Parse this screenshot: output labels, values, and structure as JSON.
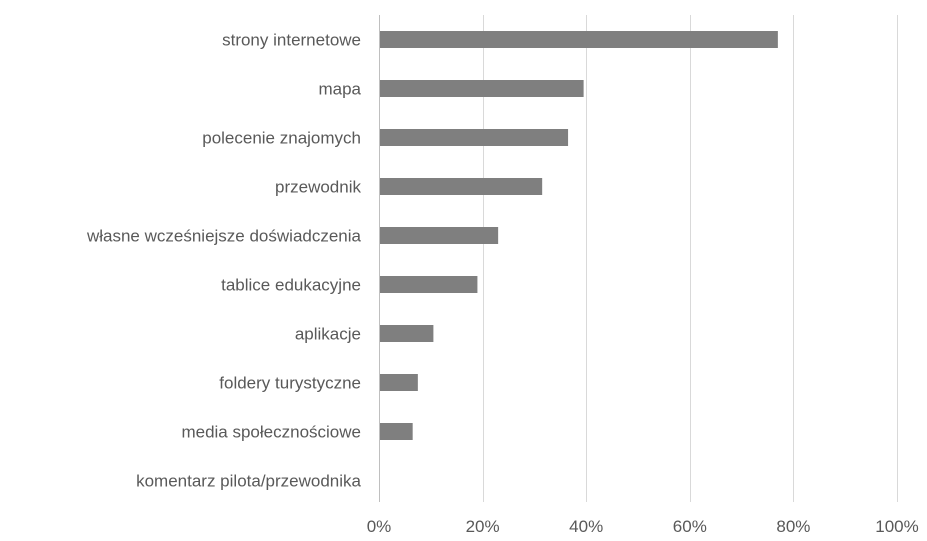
{
  "chart_data": {
    "type": "bar",
    "orientation": "horizontal",
    "title": "",
    "xlabel": "",
    "ylabel": "",
    "categories": [
      "strony internetowe",
      "mapa",
      "polecenie znajomych",
      "przewodnik",
      "własne wcześniejsze doświadczenia",
      "tablice edukacyjne",
      "aplikacje",
      "foldery turystyczne",
      "media społecznościowe",
      "komentarz pilota/przewodnika"
    ],
    "values": [
      77,
      39.5,
      36.5,
      31.5,
      23,
      19,
      10.5,
      7.5,
      6.5,
      0
    ],
    "value_unit": "%",
    "xlim": [
      0,
      100
    ],
    "xticks": [
      0,
      20,
      40,
      60,
      80,
      100
    ],
    "xtick_labels": [
      "0%",
      "20%",
      "40%",
      "60%",
      "80%",
      "100%"
    ],
    "grid": "vertical",
    "legend": "none",
    "bar_color": "#7f7f7f",
    "grid_color": "#d9d9d9",
    "text_color": "#595959"
  }
}
